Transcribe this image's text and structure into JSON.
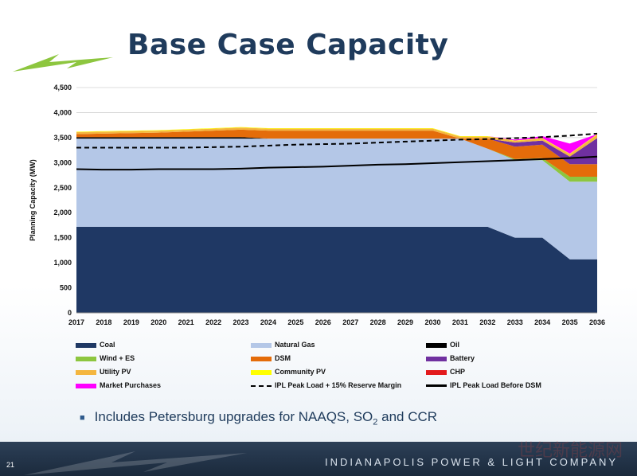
{
  "slide": {
    "title": "Base Case Capacity",
    "bullet": "Includes Petersburg upgrades for NAAQS, SO",
    "bullet_sub": "2",
    "bullet_tail": " and CCR",
    "page_number": "21",
    "company": "INDIANAPOLIS POWER & LIGHT COMPANY",
    "watermark": "世纪新能源网"
  },
  "colors": {
    "title": "#1f3b5c",
    "logo_green": "#8dc63f",
    "coal": "#1f3864",
    "natural_gas": "#b4c7e7",
    "oil": "#000000",
    "wind_es": "#8dc63f",
    "dsm": "#e46c0a",
    "battery": "#7030a0",
    "utility_pv": "#f4b63f",
    "community_pv": "#ffff00",
    "chp": "#e31a1c",
    "market": "#ff00ff"
  },
  "chart_data": {
    "type": "area",
    "title": "",
    "xlabel": "",
    "ylabel": "Planning Capacity (MW)",
    "ylim": [
      0,
      4500
    ],
    "yticks": [
      0,
      500,
      1000,
      1500,
      2000,
      2500,
      3000,
      3500,
      4000,
      4500
    ],
    "yticklabels": [
      "0",
      "500",
      "1,000",
      "1,500",
      "2,000",
      "2,500",
      "3,000",
      "3,500",
      "4,000",
      "4,500"
    ],
    "grid": true,
    "x": [
      "2017",
      "2018",
      "2019",
      "2020",
      "2021",
      "2022",
      "2023",
      "2024",
      "2025",
      "2026",
      "2027",
      "2028",
      "2029",
      "2030",
      "2031",
      "2032",
      "2033",
      "2034",
      "2035",
      "2036"
    ],
    "stacked_series": [
      {
        "name": "Coal",
        "color_key": "coal",
        "values": [
          1720,
          1720,
          1720,
          1720,
          1720,
          1720,
          1720,
          1720,
          1720,
          1720,
          1720,
          1720,
          1720,
          1720,
          1720,
          1720,
          1500,
          1500,
          1070,
          1070
        ]
      },
      {
        "name": "Natural Gas",
        "color_key": "natural_gas",
        "values": [
          1760,
          1760,
          1760,
          1760,
          1760,
          1760,
          1760,
          1760,
          1760,
          1760,
          1760,
          1760,
          1760,
          1760,
          1760,
          1560,
          1550,
          1550,
          1550,
          1550
        ]
      },
      {
        "name": "Oil",
        "color_key": "oil",
        "values": [
          30,
          30,
          30,
          30,
          30,
          30,
          30,
          0,
          0,
          0,
          0,
          0,
          0,
          0,
          0,
          0,
          0,
          0,
          0,
          0
        ]
      },
      {
        "name": "Wind + ES",
        "color_key": "wind_es",
        "values": [
          0,
          0,
          0,
          0,
          0,
          0,
          0,
          0,
          0,
          0,
          0,
          0,
          0,
          0,
          0,
          0,
          20,
          40,
          100,
          100
        ]
      },
      {
        "name": "DSM",
        "color_key": "dsm",
        "values": [
          60,
          70,
          80,
          90,
          110,
          130,
          150,
          160,
          160,
          160,
          160,
          160,
          160,
          160,
          0,
          200,
          250,
          270,
          250,
          250
        ]
      },
      {
        "name": "Battery",
        "color_key": "battery",
        "values": [
          0,
          0,
          0,
          0,
          0,
          0,
          0,
          0,
          0,
          0,
          0,
          0,
          0,
          0,
          0,
          0,
          80,
          80,
          150,
          520
        ]
      },
      {
        "name": "Utility PV",
        "color_key": "utility_pv",
        "values": [
          40,
          40,
          40,
          40,
          40,
          40,
          40,
          40,
          40,
          40,
          40,
          40,
          40,
          40,
          40,
          40,
          30,
          40,
          50,
          70
        ]
      },
      {
        "name": "Community PV",
        "color_key": "community_pv",
        "values": [
          10,
          10,
          10,
          10,
          10,
          10,
          10,
          10,
          10,
          10,
          10,
          10,
          10,
          10,
          10,
          10,
          10,
          10,
          10,
          10
        ]
      },
      {
        "name": "CHP",
        "color_key": "chp",
        "values": [
          0,
          0,
          0,
          0,
          0,
          0,
          0,
          0,
          0,
          0,
          0,
          0,
          0,
          0,
          0,
          0,
          0,
          0,
          0,
          0
        ]
      },
      {
        "name": "Market Purchases",
        "color_key": "market",
        "values": [
          0,
          0,
          0,
          0,
          0,
          0,
          0,
          0,
          0,
          0,
          0,
          0,
          0,
          0,
          0,
          0,
          20,
          40,
          200,
          0
        ]
      }
    ],
    "line_series": [
      {
        "name": "IPL Peak Load + 15% Reserve Margin",
        "style": "dashed",
        "values": [
          3300,
          3300,
          3300,
          3300,
          3300,
          3310,
          3320,
          3340,
          3360,
          3370,
          3380,
          3400,
          3420,
          3440,
          3460,
          3470,
          3490,
          3510,
          3540,
          3580
        ]
      },
      {
        "name": "IPL Peak Load Before DSM",
        "style": "solid",
        "values": [
          2870,
          2860,
          2860,
          2870,
          2870,
          2870,
          2880,
          2900,
          2910,
          2920,
          2940,
          2960,
          2970,
          2990,
          3010,
          3030,
          3050,
          3070,
          3090,
          3120
        ]
      }
    ],
    "legend_position": "bottom"
  }
}
